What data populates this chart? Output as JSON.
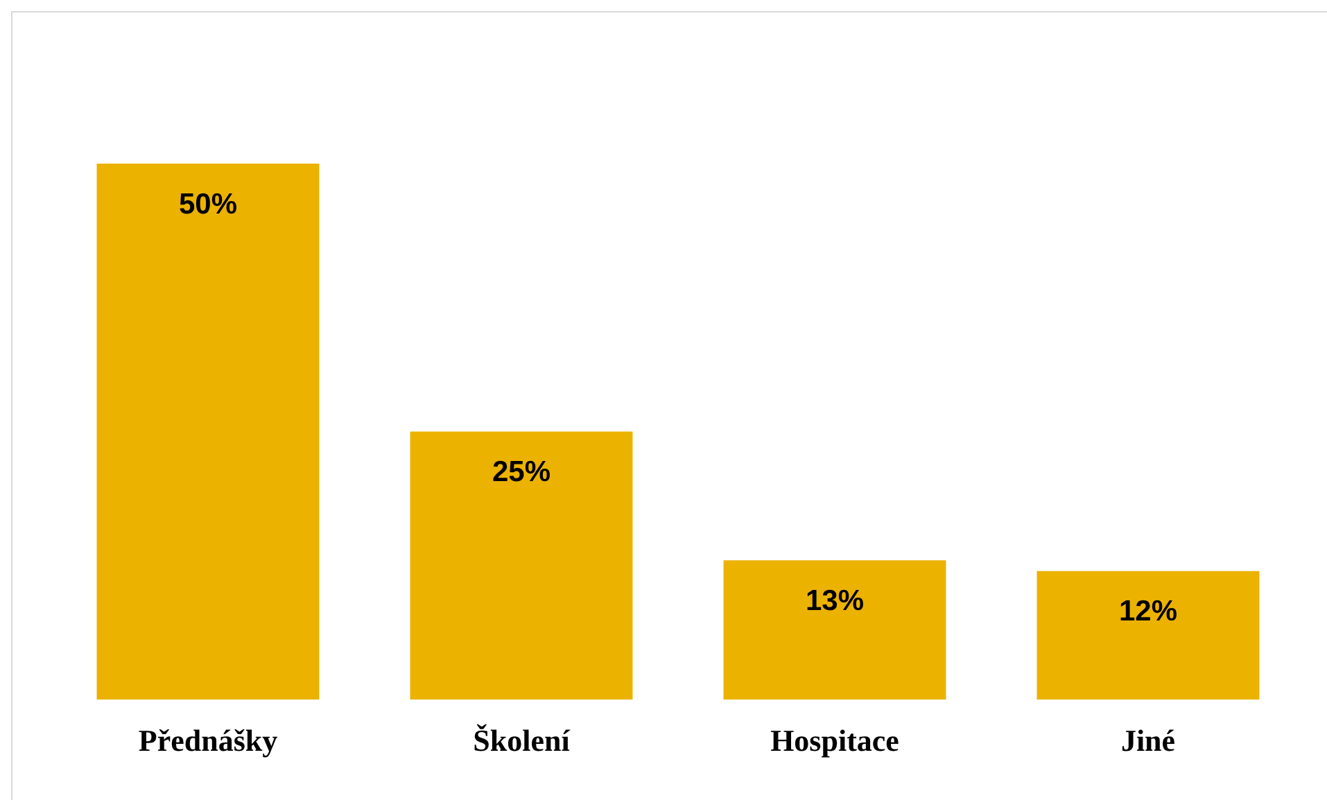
{
  "chart_data": {
    "type": "bar",
    "categories": [
      "Přednášky",
      "Školení",
      "Hospitace",
      "Jiné"
    ],
    "values": [
      50,
      25,
      13,
      12
    ],
    "color": "#ecb200",
    "data_labels": true,
    "value_labels": [
      "50%",
      "25%",
      "13%",
      "12%"
    ],
    "grid": false,
    "legend": false,
    "tick_labels": "x"
  }
}
